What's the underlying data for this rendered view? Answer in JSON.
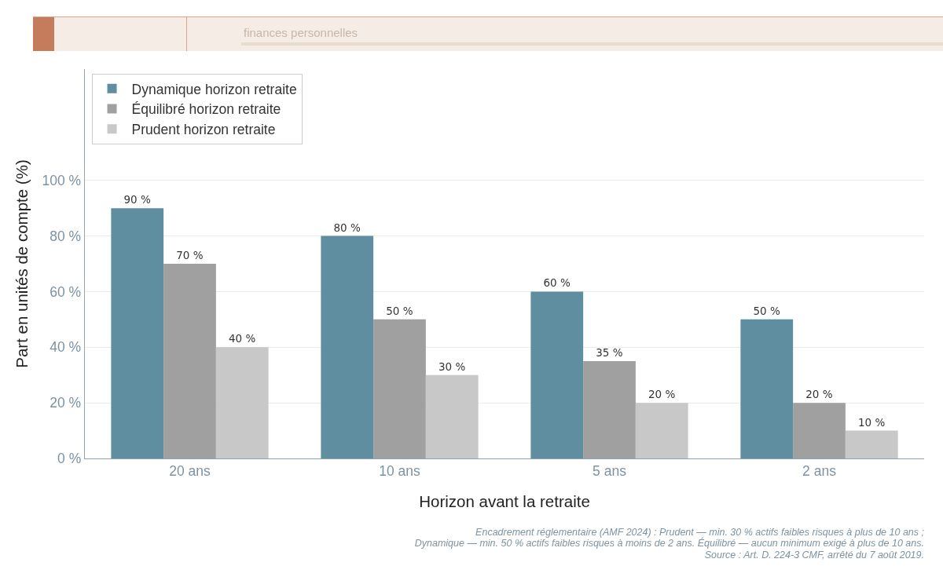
{
  "chart_data": {
    "type": "bar",
    "subtitle": "finances personnelles",
    "xlabel": "Horizon avant la retraite",
    "ylabel": "Part en unités de compte (%)",
    "categories": [
      "20 ans",
      "10 ans",
      "5 ans",
      "2 ans"
    ],
    "series": [
      {
        "name": "Dynamique horizon retraite",
        "color": "#5e8e9f",
        "values": [
          90,
          80,
          60,
          50
        ],
        "value_labels": [
          "90 %",
          "80 %",
          "60 %",
          "50 %"
        ]
      },
      {
        "name": "Équilibré horizon retraite",
        "color": "#a0a0a0",
        "values": [
          70,
          50,
          35,
          20
        ],
        "value_labels": [
          "70 %",
          "50 %",
          "35 %",
          "20 %"
        ]
      },
      {
        "name": "Prudent horizon retraite",
        "color": "#c8c8c8",
        "values": [
          40,
          30,
          20,
          10
        ],
        "value_labels": [
          "40 %",
          "30 %",
          "20 %",
          "10 %"
        ]
      }
    ],
    "ylim": [
      0,
      140
    ],
    "yticks": [
      {
        "value": 0,
        "label": "0 %"
      },
      {
        "value": 20,
        "label": "20 %"
      },
      {
        "value": 40,
        "label": "40 %"
      },
      {
        "value": 60,
        "label": "60 %"
      },
      {
        "value": 80,
        "label": "80 %"
      },
      {
        "value": 100,
        "label": "100 %"
      }
    ],
    "grid": "y",
    "legend": "top left",
    "annotations": [
      "Encadrement réglementaire (AMF 2024) : Prudent — min. 30 % actifs faibles risques à plus de 10 ans ;\nDynamique — min. 50 % actifs faibles risques à moins de 2 ans. Équilibré — aucun minimum exigé à plus de 10 ans.",
      "Source : Art. D. 224-3 CMF, arrêté du 7 août 2019."
    ]
  }
}
